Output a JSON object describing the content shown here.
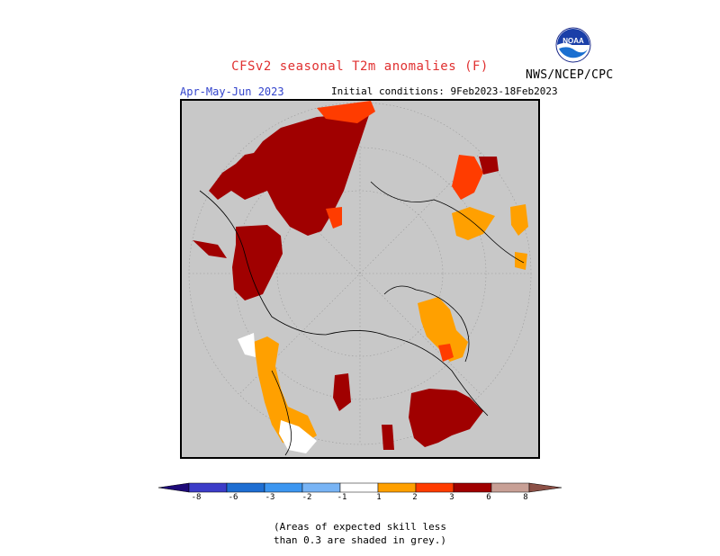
{
  "title": "CFSv2 seasonal T2m anomalies (F)",
  "agency": "NWS/NCEP/CPC",
  "logo_text": "NOAA",
  "season": "Apr-May-Jun 2023",
  "initial_conditions": "Initial conditions: 9Feb2023-18Feb2023",
  "colorbar": {
    "ticks": [
      "-8",
      "-6",
      "-3",
      "-2",
      "-1",
      "1",
      "2",
      "3",
      "6",
      "8"
    ],
    "colors": {
      "lt-8": "#1e0a78",
      "-8to-6": "#3c3cc8",
      "-6to-3": "#1e6ed2",
      "-3to-2": "#3c96f0",
      "-2to-1": "#78b4f5",
      "neutral": "#ffffff",
      "1to2": "#ffa000",
      "2to3": "#ff3c00",
      "3to6": "#a00000",
      "6to8": "#c8a096",
      "gt8": "#8c5046"
    }
  },
  "footnote": [
    "(Areas of expected skill less",
    "than 0.3 are shaded in grey.)"
  ]
}
